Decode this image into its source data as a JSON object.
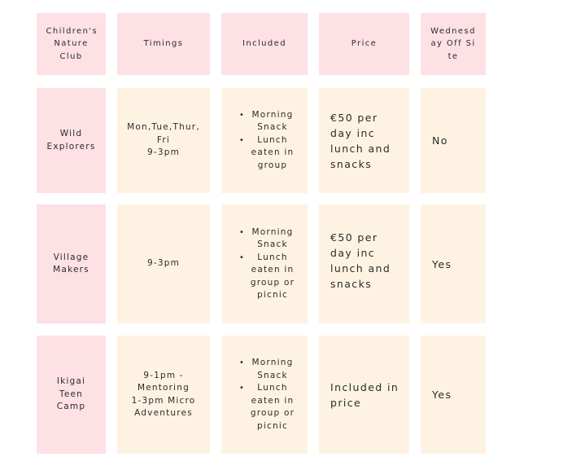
{
  "headers": {
    "club": "Children's Nature Club",
    "timings": "Timings",
    "included": "Included",
    "price": "Price",
    "wednesday": "Wednesd ay Off Site"
  },
  "rows": [
    {
      "name": "Wild Explorers",
      "timings": "Mon,Tue,Thur,\nFri\n9-3pm",
      "included": [
        "Morning Snack",
        "Lunch eaten in group"
      ],
      "price": "€50 per day inc lunch and snacks",
      "wednesday": "No"
    },
    {
      "name": "Village Makers",
      "timings": "9-3pm",
      "included": [
        "Morning Snack",
        "Lunch eaten in group or picnic"
      ],
      "price": "€50 per day inc lunch and snacks",
      "wednesday": "Yes"
    },
    {
      "name": "Ikigai Teen Camp",
      "timings": "9-1pm -\nMentoring\n1-3pm Micro\nAdventures",
      "included": [
        "Morning Snack",
        "Lunch eaten in group or picnic"
      ],
      "price": "Included in price",
      "wednesday": "Yes"
    }
  ],
  "colors": {
    "header_bg": "#fde1e5",
    "cell_bg": "#fef3e2"
  }
}
